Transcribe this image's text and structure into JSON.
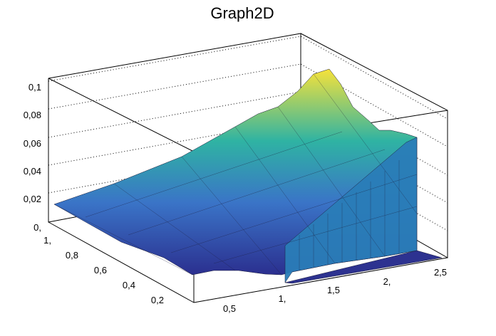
{
  "chart_data": {
    "type": "surface",
    "title": "Graph2D",
    "xlabel": "",
    "ylabel": "",
    "zlabel": "",
    "x_ticks": [
      "0,5",
      "1,",
      "1,5",
      "2,",
      "2,5"
    ],
    "y_ticks": [
      "0,2",
      "0,4",
      "0,6",
      "0,8",
      "1,"
    ],
    "z_ticks": [
      "0,",
      "0,02",
      "0,04",
      "0,06",
      "0,08",
      "0,1"
    ],
    "xlim": [
      0.0,
      2.6
    ],
    "ylim": [
      0.0,
      1.05
    ],
    "zlim": [
      0.0,
      0.105
    ],
    "grid": true,
    "colormap": "viridis-like",
    "surface_samples": [
      {
        "x": 0.0,
        "y": 1.0,
        "z": 0.016
      },
      {
        "x": 0.0,
        "y": 0.0,
        "z": 0.0
      },
      {
        "x": 1.0,
        "y": 1.0,
        "z": 0.057
      },
      {
        "x": 1.0,
        "y": 0.0,
        "z": 0.002
      },
      {
        "x": 1.9,
        "y": 1.0,
        "z": 0.102
      },
      {
        "x": 2.5,
        "y": 1.0,
        "z": 0.065
      },
      {
        "x": 2.5,
        "y": 0.0,
        "z": 0.001
      }
    ]
  }
}
